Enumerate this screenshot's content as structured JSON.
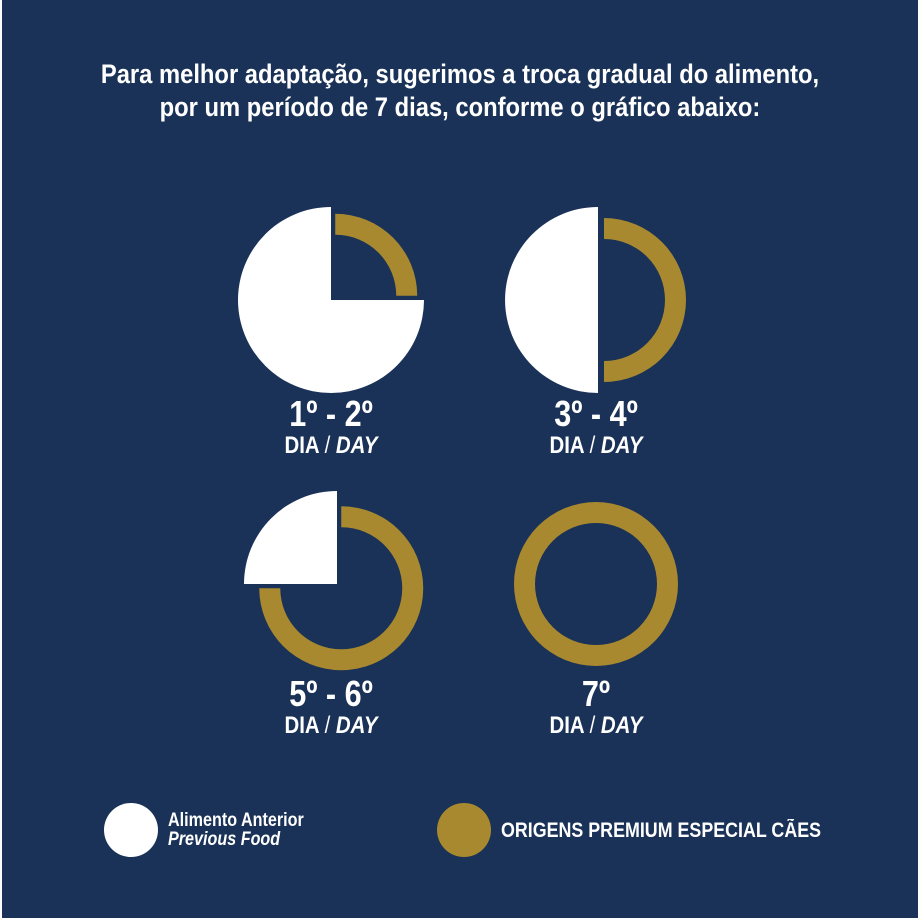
{
  "title": {
    "line1": "Para melhor adaptação, sugerimos a troca gradual do alimento,",
    "line2": "por um período de 7 dias, conforme o gráfico abaixo:"
  },
  "colors": {
    "background": "#1a3257",
    "previous": "#ffffff",
    "new": "#a8892f"
  },
  "chart_data": {
    "type": "pie",
    "series_names": [
      "Alimento Anterior / Previous Food",
      "ORIGENS PREMIUM ESPECIAL CÃES"
    ],
    "stages": [
      {
        "days": "1º - 2º",
        "dia": "DIA",
        "sep": "/",
        "day": "DAY",
        "previous_pct": 75,
        "new_pct": 25
      },
      {
        "days": "3º - 4º",
        "dia": "DIA",
        "sep": "/",
        "day": "DAY",
        "previous_pct": 50,
        "new_pct": 50
      },
      {
        "days": "5º - 6º",
        "dia": "DIA",
        "sep": "/",
        "day": "DAY",
        "previous_pct": 25,
        "new_pct": 75
      },
      {
        "days": "7º",
        "dia": "DIA",
        "sep": "/",
        "day": "DAY",
        "previous_pct": 0,
        "new_pct": 100
      }
    ]
  },
  "legend": {
    "previous_line1": "Alimento Anterior",
    "previous_line2": "Previous Food",
    "new_label": "ORIGENS PREMIUM ESPECIAL CÃES"
  }
}
